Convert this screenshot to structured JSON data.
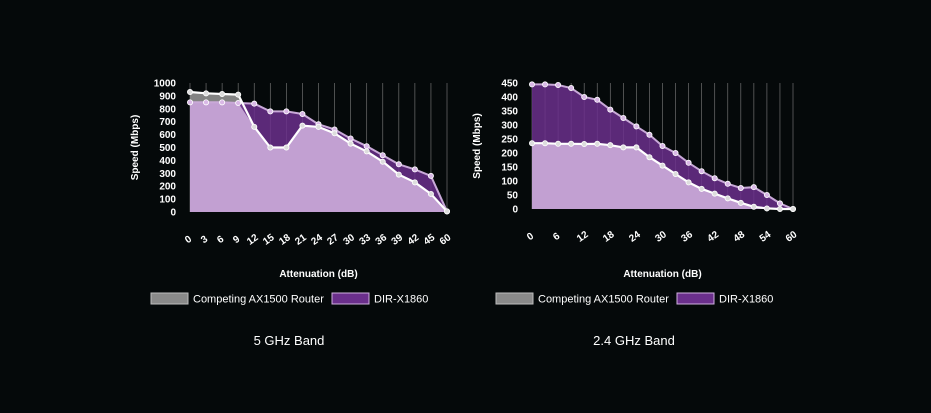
{
  "colors": {
    "background": "#05090a",
    "competitor_fill": "#8a8a8a",
    "competitor_stroke": "#5a5a5a",
    "dlink_fill": "#6b2f8c",
    "dlink_stroke": "#4a1a6b",
    "area_light": "#c9a9d8",
    "line": "#ffffff",
    "grid": "#6f6f6f",
    "text": "#ffffff"
  },
  "chart_data": [
    {
      "type": "area",
      "title": "5 GHz Band",
      "xlabel": "Attenuation (dB)",
      "ylabel": "Speed (Mbps)",
      "ylim": [
        0,
        1000
      ],
      "yticks": [
        "0",
        "100",
        "200",
        "300",
        "400",
        "500",
        "600",
        "700",
        "800",
        "900",
        "1000"
      ],
      "categories": [
        "0",
        "3",
        "6",
        "9",
        "12",
        "15",
        "18",
        "21",
        "24",
        "27",
        "30",
        "33",
        "36",
        "39",
        "42",
        "45",
        "60"
      ],
      "series": [
        {
          "name": "Competing AX1500 Router",
          "values": [
            930,
            920,
            915,
            910,
            660,
            500,
            500,
            670,
            660,
            610,
            530,
            470,
            390,
            290,
            230,
            140,
            5
          ]
        },
        {
          "name": "DIR-X1860",
          "values": [
            850,
            850,
            850,
            845,
            840,
            780,
            780,
            760,
            680,
            640,
            570,
            510,
            440,
            370,
            330,
            280,
            5
          ]
        }
      ],
      "grid": true,
      "legend_position": "bottom"
    },
    {
      "type": "area",
      "title": "2.4 GHz Band",
      "xlabel": "Attenuation (dB)",
      "ylabel": "Speed (Mbps)",
      "ylim": [
        0,
        450
      ],
      "yticks": [
        "0",
        "50",
        "100",
        "150",
        "200",
        "250",
        "300",
        "350",
        "400",
        "450"
      ],
      "categories": [
        "0",
        "3",
        "6",
        "9",
        "12",
        "15",
        "18",
        "21",
        "24",
        "27",
        "30",
        "33",
        "36",
        "39",
        "42",
        "45",
        "48",
        "51",
        "54",
        "57",
        "60"
      ],
      "xticks_shown": [
        "0",
        "6",
        "12",
        "18",
        "24",
        "30",
        "36",
        "42",
        "48",
        "54",
        "60"
      ],
      "series": [
        {
          "name": "Competing AX1500 Router",
          "values": [
            235,
            235,
            233,
            233,
            232,
            233,
            228,
            220,
            220,
            185,
            155,
            125,
            95,
            72,
            55,
            38,
            22,
            8,
            2,
            0,
            0
          ]
        },
        {
          "name": "DIR-X1860",
          "values": [
            445,
            445,
            443,
            432,
            400,
            390,
            355,
            325,
            295,
            265,
            225,
            200,
            165,
            135,
            110,
            90,
            75,
            78,
            50,
            20,
            0
          ]
        }
      ],
      "grid": true,
      "legend_position": "bottom"
    }
  ]
}
